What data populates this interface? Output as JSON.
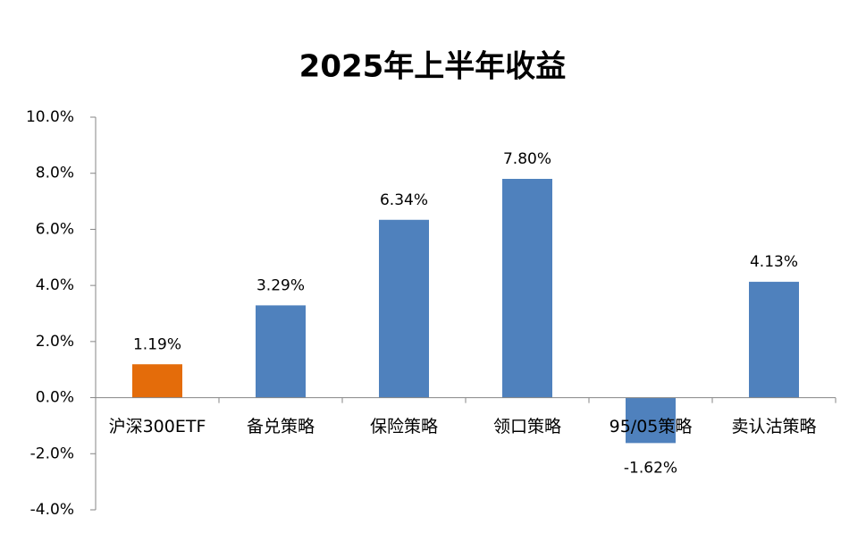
{
  "chart_data": {
    "type": "bar",
    "title": "2025年上半年收益",
    "categories": [
      "沪深300ETF",
      "备兑策略",
      "保险策略",
      "领口策略",
      "95/05策略",
      "卖认沽策略"
    ],
    "values": [
      1.19,
      3.29,
      6.34,
      7.8,
      -1.62,
      4.13
    ],
    "value_labels": [
      "1.19%",
      "3.29%",
      "6.34%",
      "7.80%",
      "-1.62%",
      "4.13%"
    ],
    "colors": [
      "#e46c0a",
      "#4f81bd",
      "#4f81bd",
      "#4f81bd",
      "#4f81bd",
      "#4f81bd"
    ],
    "ylim": [
      -4,
      10
    ],
    "yticks": [
      {
        "value": -4,
        "label": "-4.0%"
      },
      {
        "value": -2,
        "label": "-2.0%"
      },
      {
        "value": 0,
        "label": "0.0%"
      },
      {
        "value": 2,
        "label": "2.0%"
      },
      {
        "value": 4,
        "label": "4.0%"
      },
      {
        "value": 6,
        "label": "6.0%"
      },
      {
        "value": 8,
        "label": "8.0%"
      },
      {
        "value": 10,
        "label": "10.0%"
      }
    ],
    "grid": false
  }
}
